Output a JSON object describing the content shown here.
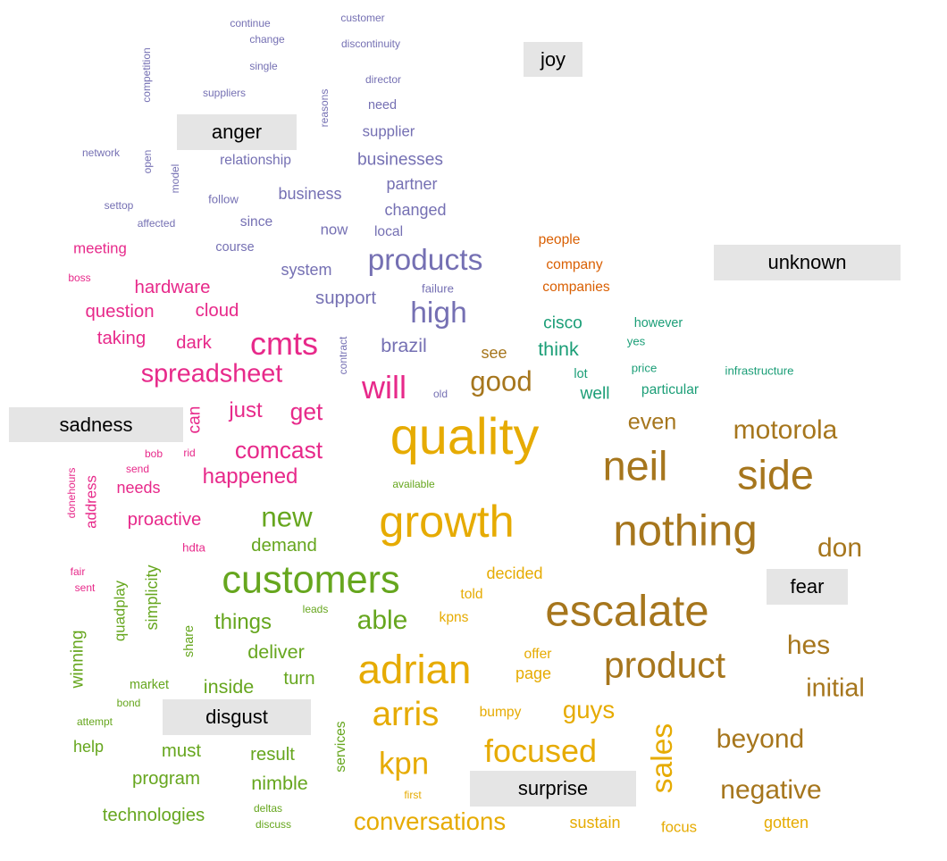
{
  "colors": {
    "anger": "#7570b3",
    "sadness": "#e7298a",
    "disgust": "#66a61e",
    "surprise": "#e6ab02",
    "fear": "#a6761d",
    "unknown": "#d95f02",
    "joy": "#1b9e77",
    "label_background": "#e5e5e5"
  },
  "categories": [
    {
      "id": "joy",
      "label": "joy"
    },
    {
      "id": "anger",
      "label": "anger"
    },
    {
      "id": "unknown",
      "label": "unknown"
    },
    {
      "id": "sadness",
      "label": "sadness"
    },
    {
      "id": "fear",
      "label": "fear"
    },
    {
      "id": "disgust",
      "label": "disgust"
    },
    {
      "id": "surprise",
      "label": "surprise"
    }
  ],
  "words": [
    {
      "text": "continue",
      "group": "anger",
      "weight": 1
    },
    {
      "text": "customer",
      "group": "anger",
      "weight": 1
    },
    {
      "text": "change",
      "group": "anger",
      "weight": 1
    },
    {
      "text": "discontinuity",
      "group": "anger",
      "weight": 1
    },
    {
      "text": "competition",
      "group": "anger",
      "weight": 1,
      "vertical": true
    },
    {
      "text": "single",
      "group": "anger",
      "weight": 1
    },
    {
      "text": "director",
      "group": "anger",
      "weight": 1
    },
    {
      "text": "suppliers",
      "group": "anger",
      "weight": 1
    },
    {
      "text": "reasons",
      "group": "anger",
      "weight": 1,
      "vertical": true
    },
    {
      "text": "need",
      "group": "anger",
      "weight": 1.2
    },
    {
      "text": "supplier",
      "group": "anger",
      "weight": 1.4
    },
    {
      "text": "network",
      "group": "anger",
      "weight": 1
    },
    {
      "text": "open",
      "group": "anger",
      "weight": 1,
      "vertical": true
    },
    {
      "text": "relationship",
      "group": "anger",
      "weight": 1.3
    },
    {
      "text": "businesses",
      "group": "anger",
      "weight": 1.6
    },
    {
      "text": "model",
      "group": "anger",
      "weight": 1,
      "vertical": true
    },
    {
      "text": "partner",
      "group": "anger",
      "weight": 1.5
    },
    {
      "text": "follow",
      "group": "anger",
      "weight": 1.1
    },
    {
      "text": "business",
      "group": "anger",
      "weight": 1.5
    },
    {
      "text": "settop",
      "group": "anger",
      "weight": 1
    },
    {
      "text": "changed",
      "group": "anger",
      "weight": 1.5
    },
    {
      "text": "affected",
      "group": "anger",
      "weight": 1
    },
    {
      "text": "since",
      "group": "anger",
      "weight": 1.3
    },
    {
      "text": "now",
      "group": "anger",
      "weight": 1.4
    },
    {
      "text": "local",
      "group": "anger",
      "weight": 1.3
    },
    {
      "text": "course",
      "group": "anger",
      "weight": 1.2
    },
    {
      "text": "products",
      "group": "anger",
      "weight": 2.8
    },
    {
      "text": "system",
      "group": "anger",
      "weight": 1.5
    },
    {
      "text": "failure",
      "group": "anger",
      "weight": 1.1
    },
    {
      "text": "support",
      "group": "anger",
      "weight": 1.7
    },
    {
      "text": "high",
      "group": "anger",
      "weight": 2.8
    },
    {
      "text": "contract",
      "group": "anger",
      "weight": 1,
      "vertical": true
    },
    {
      "text": "brazil",
      "group": "anger",
      "weight": 1.8
    },
    {
      "text": "old",
      "group": "anger",
      "weight": 1
    },
    {
      "text": "meeting",
      "group": "sadness",
      "weight": 1.4
    },
    {
      "text": "boss",
      "group": "sadness",
      "weight": 1
    },
    {
      "text": "hardware",
      "group": "sadness",
      "weight": 1.7
    },
    {
      "text": "question",
      "group": "sadness",
      "weight": 1.7
    },
    {
      "text": "cloud",
      "group": "sadness",
      "weight": 1.7
    },
    {
      "text": "taking",
      "group": "sadness",
      "weight": 1.7
    },
    {
      "text": "dark",
      "group": "sadness",
      "weight": 1.7
    },
    {
      "text": "cmts",
      "group": "sadness",
      "weight": 3
    },
    {
      "text": "spreadsheet",
      "group": "sadness",
      "weight": 2.4
    },
    {
      "text": "will",
      "group": "sadness",
      "weight": 3
    },
    {
      "text": "can",
      "group": "sadness",
      "weight": 1.6,
      "vertical": true
    },
    {
      "text": "just",
      "group": "sadness",
      "weight": 2
    },
    {
      "text": "get",
      "group": "sadness",
      "weight": 2.2
    },
    {
      "text": "bob",
      "group": "sadness",
      "weight": 1
    },
    {
      "text": "rid",
      "group": "sadness",
      "weight": 1
    },
    {
      "text": "comcast",
      "group": "sadness",
      "weight": 2.2
    },
    {
      "text": "send",
      "group": "sadness",
      "weight": 1
    },
    {
      "text": "needs",
      "group": "sadness",
      "weight": 1.5
    },
    {
      "text": "happened",
      "group": "sadness",
      "weight": 2
    },
    {
      "text": "donehours",
      "group": "sadness",
      "weight": 1,
      "vertical": true
    },
    {
      "text": "address",
      "group": "sadness",
      "weight": 1.4,
      "vertical": true
    },
    {
      "text": "proactive",
      "group": "sadness",
      "weight": 1.7
    },
    {
      "text": "hdta",
      "group": "sadness",
      "weight": 1.1
    },
    {
      "text": "fair",
      "group": "sadness",
      "weight": 1
    },
    {
      "text": "sent",
      "group": "sadness",
      "weight": 1
    },
    {
      "text": "new",
      "group": "disgust",
      "weight": 2.6
    },
    {
      "text": "demand",
      "group": "disgust",
      "weight": 1.7
    },
    {
      "text": "available",
      "group": "disgust",
      "weight": 1
    },
    {
      "text": "customers",
      "group": "disgust",
      "weight": 3.6
    },
    {
      "text": "simplicity",
      "group": "disgust",
      "weight": 1.5,
      "vertical": true
    },
    {
      "text": "quadplay",
      "group": "disgust",
      "weight": 1.4,
      "vertical": true
    },
    {
      "text": "leads",
      "group": "disgust",
      "weight": 1
    },
    {
      "text": "things",
      "group": "disgust",
      "weight": 2
    },
    {
      "text": "able",
      "group": "disgust",
      "weight": 2.5
    },
    {
      "text": "share",
      "group": "disgust",
      "weight": 1.2,
      "vertical": true
    },
    {
      "text": "winning",
      "group": "disgust",
      "weight": 1.6,
      "vertical": true
    },
    {
      "text": "deliver",
      "group": "disgust",
      "weight": 1.8
    },
    {
      "text": "turn",
      "group": "disgust",
      "weight": 1.7
    },
    {
      "text": "market",
      "group": "disgust",
      "weight": 1.2
    },
    {
      "text": "inside",
      "group": "disgust",
      "weight": 1.8
    },
    {
      "text": "bond",
      "group": "disgust",
      "weight": 1
    },
    {
      "text": "attempt",
      "group": "disgust",
      "weight": 1
    },
    {
      "text": "services",
      "group": "disgust",
      "weight": 1.3,
      "vertical": true
    },
    {
      "text": "help",
      "group": "disgust",
      "weight": 1.5
    },
    {
      "text": "must",
      "group": "disgust",
      "weight": 1.7
    },
    {
      "text": "result",
      "group": "disgust",
      "weight": 1.7
    },
    {
      "text": "program",
      "group": "disgust",
      "weight": 1.7
    },
    {
      "text": "nimble",
      "group": "disgust",
      "weight": 1.8
    },
    {
      "text": "technologies",
      "group": "disgust",
      "weight": 1.7
    },
    {
      "text": "deltas",
      "group": "disgust",
      "weight": 1
    },
    {
      "text": "discuss",
      "group": "disgust",
      "weight": 1
    },
    {
      "text": "quality",
      "group": "surprise",
      "weight": 4.8
    },
    {
      "text": "growth",
      "group": "surprise",
      "weight": 4.2
    },
    {
      "text": "decided",
      "group": "surprise",
      "weight": 1.5
    },
    {
      "text": "told",
      "group": "surprise",
      "weight": 1.3
    },
    {
      "text": "kpns",
      "group": "surprise",
      "weight": 1.3
    },
    {
      "text": "offer",
      "group": "surprise",
      "weight": 1.3
    },
    {
      "text": "page",
      "group": "surprise",
      "weight": 1.5
    },
    {
      "text": "adrian",
      "group": "surprise",
      "weight": 3.8
    },
    {
      "text": "arris",
      "group": "surprise",
      "weight": 3.2
    },
    {
      "text": "bumpy",
      "group": "surprise",
      "weight": 1.3
    },
    {
      "text": "guys",
      "group": "surprise",
      "weight": 2.3
    },
    {
      "text": "focused",
      "group": "surprise",
      "weight": 3
    },
    {
      "text": "kpn",
      "group": "surprise",
      "weight": 2.9
    },
    {
      "text": "sales",
      "group": "surprise",
      "weight": 2.8,
      "vertical": true
    },
    {
      "text": "first",
      "group": "surprise",
      "weight": 1
    },
    {
      "text": "conversations",
      "group": "surprise",
      "weight": 2.3
    },
    {
      "text": "sustain",
      "group": "surprise",
      "weight": 1.5
    },
    {
      "text": "focus",
      "group": "surprise",
      "weight": 1.4
    },
    {
      "text": "gotten",
      "group": "surprise",
      "weight": 1.5
    },
    {
      "text": "see",
      "group": "fear",
      "weight": 1.5
    },
    {
      "text": "good",
      "group": "fear",
      "weight": 2.6
    },
    {
      "text": "even",
      "group": "fear",
      "weight": 2.1
    },
    {
      "text": "motorola",
      "group": "fear",
      "weight": 2.5
    },
    {
      "text": "neil",
      "group": "fear",
      "weight": 3.9
    },
    {
      "text": "side",
      "group": "fear",
      "weight": 3.9
    },
    {
      "text": "nothing",
      "group": "fear",
      "weight": 4.1
    },
    {
      "text": "don",
      "group": "fear",
      "weight": 2.5
    },
    {
      "text": "escalate",
      "group": "fear",
      "weight": 4.1
    },
    {
      "text": "hes",
      "group": "fear",
      "weight": 2.5
    },
    {
      "text": "product",
      "group": "fear",
      "weight": 3.4
    },
    {
      "text": "initial",
      "group": "fear",
      "weight": 2.4
    },
    {
      "text": "beyond",
      "group": "fear",
      "weight": 2.5
    },
    {
      "text": "negative",
      "group": "fear",
      "weight": 2.5
    },
    {
      "text": "people",
      "group": "unknown",
      "weight": 1.3
    },
    {
      "text": "company",
      "group": "unknown",
      "weight": 1.3
    },
    {
      "text": "companies",
      "group": "unknown",
      "weight": 1.3
    },
    {
      "text": "cisco",
      "group": "joy",
      "weight": 1.6
    },
    {
      "text": "however",
      "group": "joy",
      "weight": 1.2
    },
    {
      "text": "think",
      "group": "joy",
      "weight": 1.8
    },
    {
      "text": "yes",
      "group": "joy",
      "weight": 1.1
    },
    {
      "text": "price",
      "group": "joy",
      "weight": 1.1
    },
    {
      "text": "infrastructure",
      "group": "joy",
      "weight": 1.1
    },
    {
      "text": "lot",
      "group": "joy",
      "weight": 1.2
    },
    {
      "text": "particular",
      "group": "joy",
      "weight": 1.3
    },
    {
      "text": "well",
      "group": "joy",
      "weight": 1.6
    }
  ]
}
